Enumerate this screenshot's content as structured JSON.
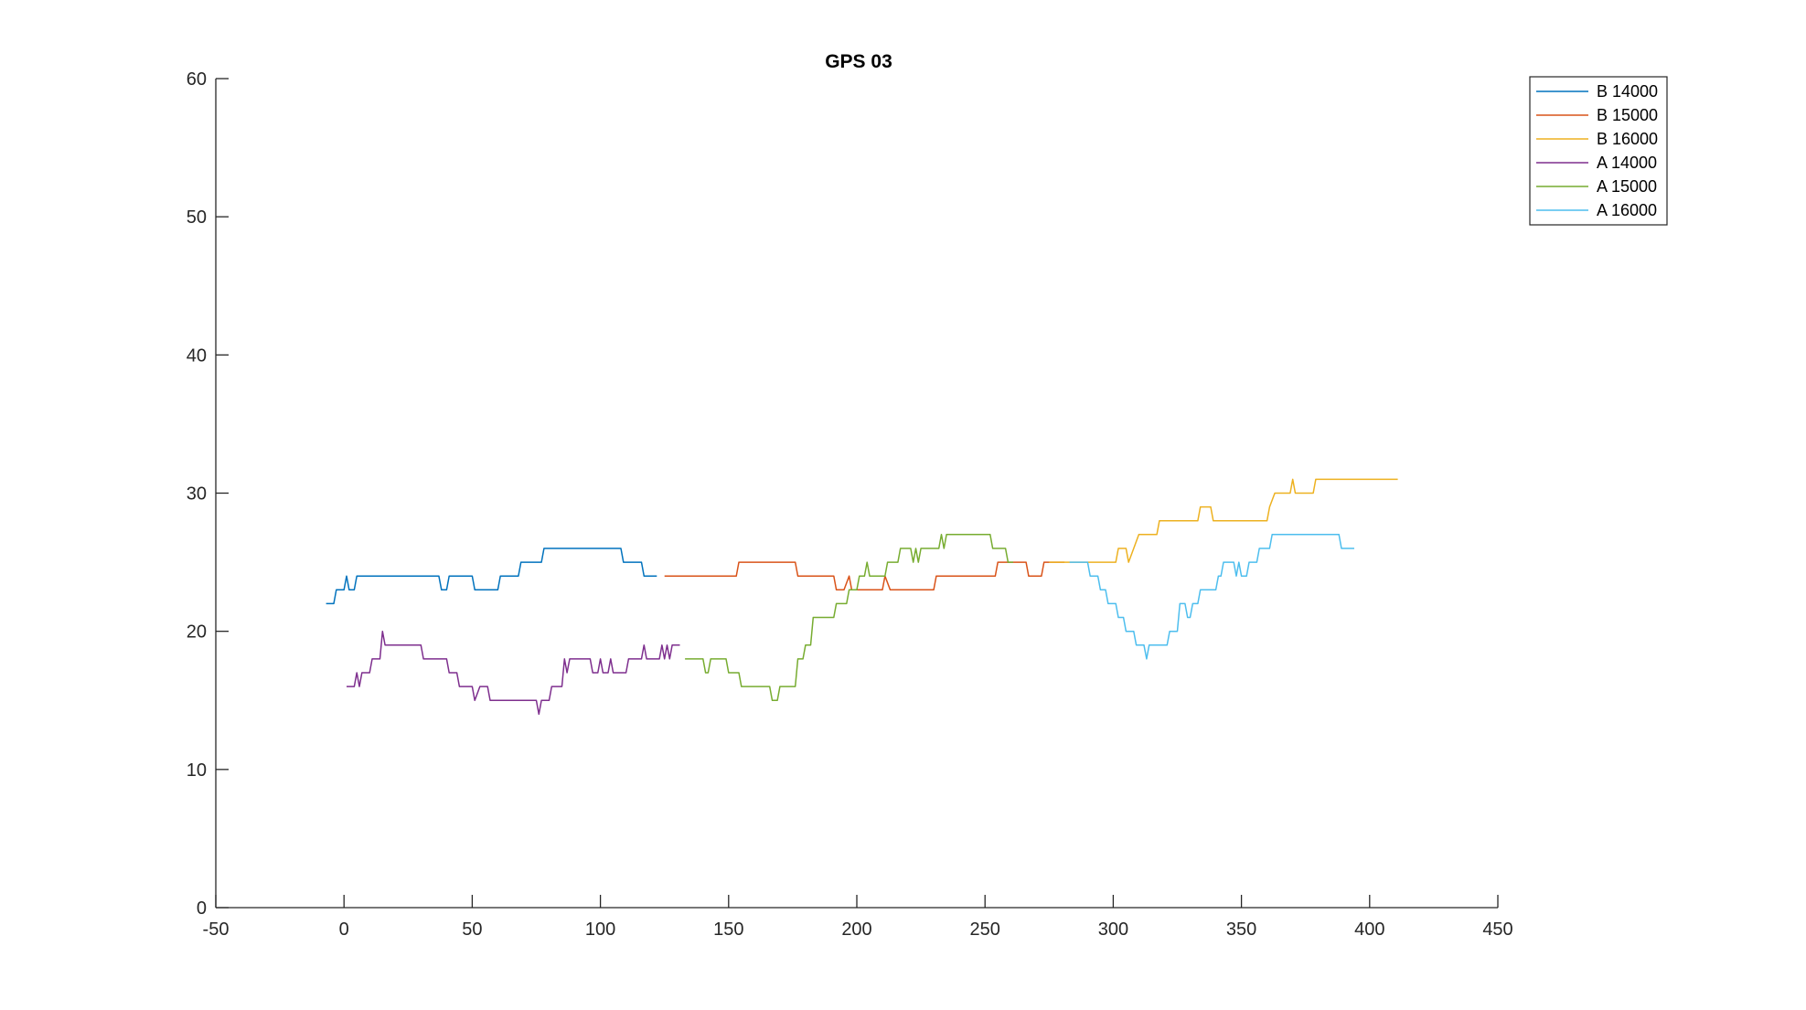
{
  "chart_data": {
    "type": "line",
    "title": "GPS 03",
    "xlabel": "",
    "ylabel": "",
    "xlim": [
      -50,
      450
    ],
    "ylim": [
      0,
      60
    ],
    "xticks": [
      -50,
      0,
      50,
      100,
      150,
      200,
      250,
      300,
      350,
      400,
      450
    ],
    "yticks": [
      0,
      10,
      20,
      30,
      40,
      50,
      60
    ],
    "xtick_labels": [
      "-50",
      "0",
      "50",
      "100",
      "150",
      "200",
      "250",
      "300",
      "350",
      "400",
      "450"
    ],
    "ytick_labels": [
      "0",
      "10",
      "20",
      "30",
      "40",
      "50",
      "60"
    ],
    "grid": false,
    "legend_position": "top-right",
    "series": [
      {
        "name": "B 14000",
        "color": "#0072BD",
        "points": [
          [
            -7,
            22
          ],
          [
            -4,
            22
          ],
          [
            -3,
            23
          ],
          [
            0,
            23
          ],
          [
            1,
            24
          ],
          [
            2,
            23
          ],
          [
            4,
            23
          ],
          [
            5,
            24
          ],
          [
            37,
            24
          ],
          [
            38,
            23
          ],
          [
            40,
            23
          ],
          [
            41,
            24
          ],
          [
            50,
            24
          ],
          [
            51,
            23
          ],
          [
            60,
            23
          ],
          [
            61,
            24
          ],
          [
            68,
            24
          ],
          [
            69,
            25
          ],
          [
            77,
            25
          ],
          [
            78,
            26
          ],
          [
            108,
            26
          ],
          [
            109,
            25
          ],
          [
            116,
            25
          ],
          [
            117,
            24
          ],
          [
            122,
            24
          ]
        ]
      },
      {
        "name": "B 15000",
        "color": "#D95319",
        "points": [
          [
            125,
            24
          ],
          [
            153,
            24
          ],
          [
            154,
            25
          ],
          [
            176,
            25
          ],
          [
            177,
            24
          ],
          [
            191,
            24
          ],
          [
            192,
            23
          ],
          [
            195,
            23
          ],
          [
            197,
            24
          ],
          [
            198,
            23
          ],
          [
            210,
            23
          ],
          [
            211,
            24
          ],
          [
            213,
            23
          ],
          [
            230,
            23
          ],
          [
            231,
            24
          ],
          [
            254,
            24
          ],
          [
            255,
            25
          ],
          [
            266,
            25
          ],
          [
            267,
            24
          ],
          [
            272,
            24
          ],
          [
            273,
            25
          ],
          [
            281,
            25
          ]
        ]
      },
      {
        "name": "B 16000",
        "color": "#EDB120",
        "points": [
          [
            275,
            25
          ],
          [
            301,
            25
          ],
          [
            302,
            26
          ],
          [
            305,
            26
          ],
          [
            306,
            25
          ],
          [
            308,
            26
          ],
          [
            310,
            27
          ],
          [
            317,
            27
          ],
          [
            318,
            28
          ],
          [
            333,
            28
          ],
          [
            334,
            29
          ],
          [
            338,
            29
          ],
          [
            339,
            28
          ],
          [
            360,
            28
          ],
          [
            361,
            29
          ],
          [
            363,
            30
          ],
          [
            369,
            30
          ],
          [
            370,
            31
          ],
          [
            371,
            30
          ],
          [
            378,
            30
          ],
          [
            379,
            31
          ],
          [
            411,
            31
          ]
        ]
      },
      {
        "name": "A 14000",
        "color": "#7E2F8E",
        "points": [
          [
            1,
            16
          ],
          [
            4,
            16
          ],
          [
            5,
            17
          ],
          [
            6,
            16
          ],
          [
            7,
            17
          ],
          [
            10,
            17
          ],
          [
            11,
            18
          ],
          [
            14,
            18
          ],
          [
            15,
            20
          ],
          [
            16,
            19
          ],
          [
            30,
            19
          ],
          [
            31,
            18
          ],
          [
            40,
            18
          ],
          [
            41,
            17
          ],
          [
            44,
            17
          ],
          [
            45,
            16
          ],
          [
            50,
            16
          ],
          [
            51,
            15
          ],
          [
            53,
            16
          ],
          [
            56,
            16
          ],
          [
            57,
            15
          ],
          [
            75,
            15
          ],
          [
            76,
            14
          ],
          [
            77,
            15
          ],
          [
            80,
            15
          ],
          [
            81,
            16
          ],
          [
            85,
            16
          ],
          [
            86,
            18
          ],
          [
            87,
            17
          ],
          [
            88,
            18
          ],
          [
            96,
            18
          ],
          [
            97,
            17
          ],
          [
            99,
            17
          ],
          [
            100,
            18
          ],
          [
            101,
            17
          ],
          [
            103,
            17
          ],
          [
            104,
            18
          ],
          [
            105,
            17
          ],
          [
            110,
            17
          ],
          [
            111,
            18
          ],
          [
            116,
            18
          ],
          [
            117,
            19
          ],
          [
            118,
            18
          ],
          [
            123,
            18
          ],
          [
            124,
            19
          ],
          [
            125,
            18
          ],
          [
            126,
            19
          ],
          [
            127,
            18
          ],
          [
            128,
            19
          ],
          [
            131,
            19
          ]
        ]
      },
      {
        "name": "A 15000",
        "color": "#77AC30",
        "points": [
          [
            133,
            18
          ],
          [
            140,
            18
          ],
          [
            141,
            17
          ],
          [
            142,
            17
          ],
          [
            143,
            18
          ],
          [
            149,
            18
          ],
          [
            150,
            17
          ],
          [
            154,
            17
          ],
          [
            155,
            16
          ],
          [
            166,
            16
          ],
          [
            167,
            15
          ],
          [
            169,
            15
          ],
          [
            170,
            16
          ],
          [
            176,
            16
          ],
          [
            177,
            18
          ],
          [
            179,
            18
          ],
          [
            180,
            19
          ],
          [
            182,
            19
          ],
          [
            183,
            21
          ],
          [
            191,
            21
          ],
          [
            192,
            22
          ],
          [
            196,
            22
          ],
          [
            197,
            23
          ],
          [
            200,
            23
          ],
          [
            201,
            24
          ],
          [
            203,
            24
          ],
          [
            204,
            25
          ],
          [
            205,
            24
          ],
          [
            211,
            24
          ],
          [
            212,
            25
          ],
          [
            216,
            25
          ],
          [
            217,
            26
          ],
          [
            221,
            26
          ],
          [
            222,
            25
          ],
          [
            223,
            26
          ],
          [
            224,
            25
          ],
          [
            225,
            26
          ],
          [
            232,
            26
          ],
          [
            233,
            27
          ],
          [
            234,
            26
          ],
          [
            235,
            27
          ],
          [
            252,
            27
          ],
          [
            253,
            26
          ],
          [
            258,
            26
          ],
          [
            259,
            25
          ],
          [
            261,
            25
          ]
        ]
      },
      {
        "name": "A 16000",
        "color": "#4DBEEE",
        "points": [
          [
            283,
            25
          ],
          [
            290,
            25
          ],
          [
            291,
            24
          ],
          [
            294,
            24
          ],
          [
            295,
            23
          ],
          [
            297,
            23
          ],
          [
            298,
            22
          ],
          [
            301,
            22
          ],
          [
            302,
            21
          ],
          [
            304,
            21
          ],
          [
            305,
            20
          ],
          [
            308,
            20
          ],
          [
            309,
            19
          ],
          [
            312,
            19
          ],
          [
            313,
            18
          ],
          [
            314,
            19
          ],
          [
            321,
            19
          ],
          [
            322,
            20
          ],
          [
            325,
            20
          ],
          [
            326,
            22
          ],
          [
            328,
            22
          ],
          [
            329,
            21
          ],
          [
            330,
            21
          ],
          [
            331,
            22
          ],
          [
            333,
            22
          ],
          [
            334,
            23
          ],
          [
            340,
            23
          ],
          [
            341,
            24
          ],
          [
            342,
            24
          ],
          [
            343,
            25
          ],
          [
            347,
            25
          ],
          [
            348,
            24
          ],
          [
            349,
            25
          ],
          [
            350,
            24
          ],
          [
            352,
            24
          ],
          [
            353,
            25
          ],
          [
            356,
            25
          ],
          [
            357,
            26
          ],
          [
            361,
            26
          ],
          [
            362,
            27
          ],
          [
            388,
            27
          ],
          [
            389,
            26
          ],
          [
            394,
            26
          ]
        ]
      }
    ]
  }
}
